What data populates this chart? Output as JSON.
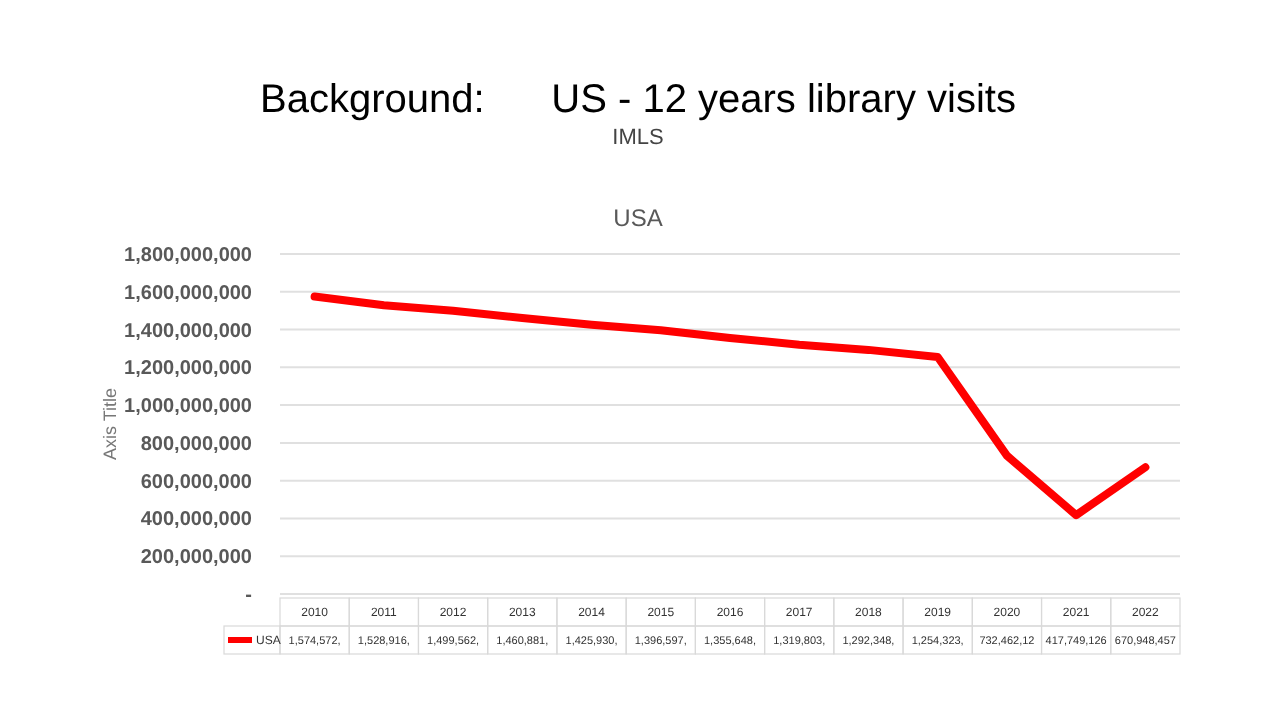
{
  "chart_data": {
    "type": "line",
    "title": "Background:      US - 12 years library visits",
    "subtitle": "IMLS",
    "annotations": [
      "USA",
      "1,574,572,",
      "1,528,916,",
      "1,499,562,",
      "1,460,881,",
      "1,425,930,",
      "1,396,597,",
      "1,355,648,",
      "1,319,803,",
      "1,292,348,",
      "1,254,323,",
      "732,462,12"
    ],
    "ylabel": "Axis Title",
    "categories": [
      "2010",
      "2011",
      "2012",
      "2013",
      "2014",
      "2015",
      "2016",
      "2017",
      "2018",
      "2019",
      "2020",
      "2021",
      "2022"
    ],
    "series": [
      {
        "name": "USA",
        "color": "#ff0000",
        "values": [
          1574572000,
          1528916000,
          1499562000,
          1460881000,
          1425930000,
          1396597000,
          1355648000,
          1319803000,
          1292348000,
          1254323000,
          732462120,
          417749126,
          670948457
        ],
        "value_labels": [
          null,
          null,
          null,
          null,
          null,
          null,
          null,
          null,
          null,
          null,
          null,
          "417,749,126",
          "670,948,457"
        ]
      }
    ],
    "ylim": [
      0,
      1800000000
    ],
    "yticks": [
      {
        "value": 0,
        "label": "-"
      },
      {
        "value": 200000000,
        "label": "200,000,000"
      },
      {
        "value": 400000000,
        "label": "400,000,000"
      },
      {
        "value": 600000000,
        "label": "600,000,000"
      },
      {
        "value": 800000000,
        "label": "800,000,000"
      },
      {
        "value": 1000000000,
        "label": "1,000,000,000"
      },
      {
        "value": 1200000000,
        "label": "1,200,000,000"
      },
      {
        "value": 1400000000,
        "label": "1,400,000,000"
      },
      {
        "value": 1600000000,
        "label": "1,600,000,000"
      },
      {
        "value": 1800000000,
        "label": "1,800,000,000"
      }
    ],
    "grid": "y",
    "legend": "bottom",
    "marker": "none",
    "line_style": "solid"
  }
}
